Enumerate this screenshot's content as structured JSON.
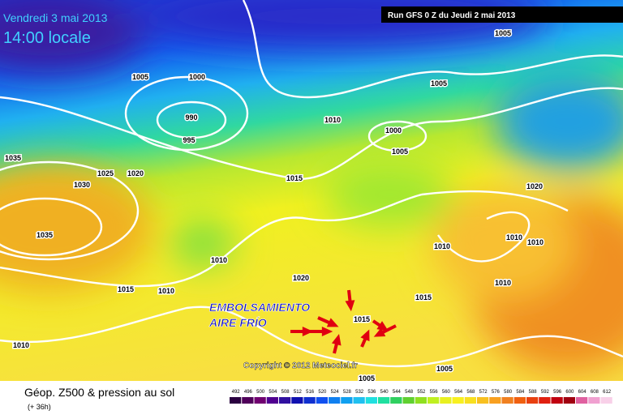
{
  "header": {
    "date": "Vendredi 3 mai 2013",
    "time": "14:00 locale",
    "run": "Run GFS 0 Z du Jeudi 2 mai 2013"
  },
  "isobar_labels": [
    "1005",
    "1005",
    "1000",
    "990",
    "995",
    "1010",
    "1000",
    "1005",
    "1005",
    "1035",
    "1025",
    "1020",
    "1030",
    "1015",
    "1020",
    "1035",
    "1010",
    "1010",
    "1010",
    "1010",
    "1015",
    "1010",
    "1020",
    "1010",
    "1015",
    "1015",
    "1010",
    "1005",
    "1005"
  ],
  "annotation": {
    "line1": "EMBOLSAMIENTO",
    "line2": "AIRE FRÍO"
  },
  "copyright": "Copyright © 2012 Meteociel.fr",
  "footer": {
    "title": "Géop. Z500 & pression au sol",
    "subtitle": "(+ 36h)"
  },
  "scale": [
    492,
    496,
    500,
    504,
    508,
    512,
    516,
    520,
    524,
    528,
    532,
    536,
    540,
    544,
    548,
    552,
    556,
    560,
    564,
    568,
    572,
    576,
    580,
    584,
    588,
    592,
    596,
    600,
    604,
    608,
    612
  ]
}
